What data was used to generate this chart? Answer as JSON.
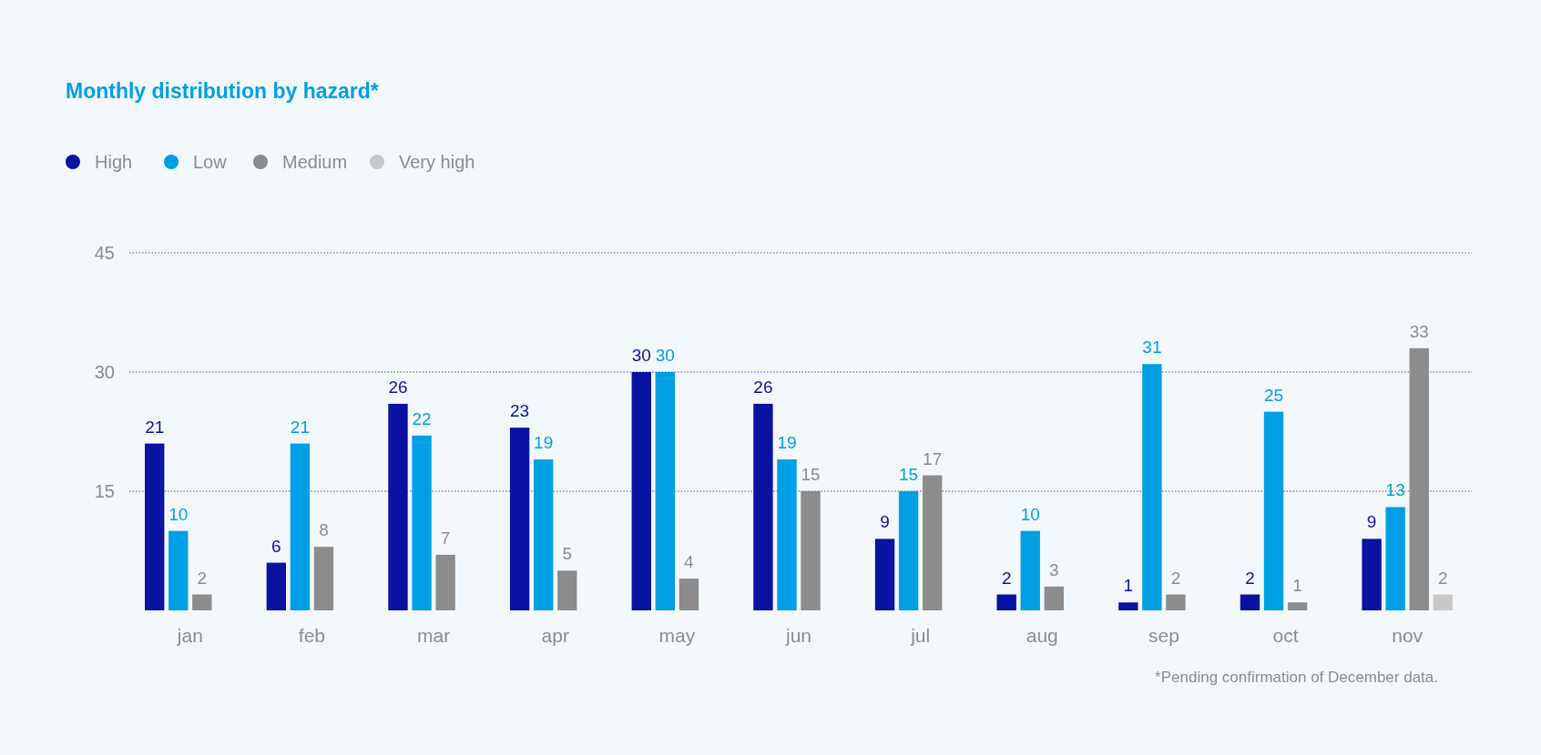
{
  "chart_data": {
    "type": "bar",
    "title": "Monthly distribution by hazard*",
    "categories": [
      "jan",
      "feb",
      "mar",
      "apr",
      "may",
      "jun",
      "jul",
      "aug",
      "sep",
      "oct",
      "nov"
    ],
    "series": [
      {
        "name": "High",
        "color": "#0a12a2",
        "values": [
          21,
          6,
          26,
          23,
          30,
          26,
          9,
          2,
          1,
          2,
          9
        ]
      },
      {
        "name": "Low",
        "color": "#009fe3",
        "values": [
          10,
          21,
          22,
          19,
          30,
          19,
          15,
          10,
          31,
          25,
          13
        ]
      },
      {
        "name": "Medium",
        "color": "#8c8c8c",
        "values": [
          2,
          8,
          7,
          5,
          4,
          15,
          17,
          3,
          2,
          1,
          33
        ]
      },
      {
        "name": "Very high",
        "color": "#c8c8c8",
        "values": [
          null,
          null,
          null,
          null,
          null,
          null,
          null,
          null,
          null,
          null,
          2
        ]
      }
    ],
    "ylim": [
      0,
      45
    ],
    "yticks": [
      15,
      30,
      45
    ],
    "grid": "y",
    "legend": "top left",
    "data_labels": true,
    "annotations": [
      "*Pending confirmation of December data."
    ]
  }
}
